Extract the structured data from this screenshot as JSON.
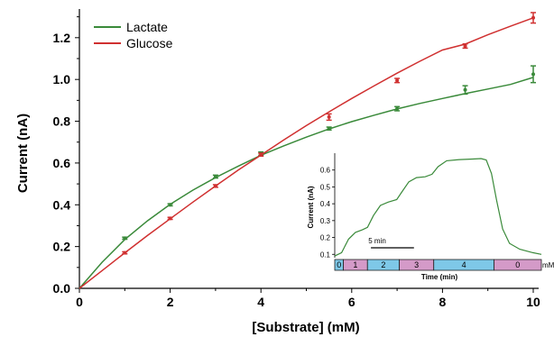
{
  "chart_data": [
    {
      "type": "line",
      "title": "",
      "xlabel": "[Substrate] (mM)",
      "ylabel": "Current (nA)",
      "xlim": [
        0,
        10
      ],
      "ylim": [
        0,
        1.32
      ],
      "x_ticks": [
        "0",
        "2",
        "4",
        "6",
        "8",
        "10"
      ],
      "y_ticks": [
        "0.0",
        "0.2",
        "0.4",
        "0.6",
        "0.8",
        "1.0",
        "1.2"
      ],
      "legend_position": "top-left",
      "error_bars": true,
      "series": [
        {
          "name": "Lactate",
          "color": "#3a8a3a",
          "points": [
            {
              "x": 1,
              "y": 0.24,
              "err": 0.005
            },
            {
              "x": 2,
              "y": 0.4,
              "err": 0.005
            },
            {
              "x": 3,
              "y": 0.535,
              "err": 0.007
            },
            {
              "x": 4,
              "y": 0.645,
              "err": 0.008
            },
            {
              "x": 5.5,
              "y": 0.765,
              "err": 0.007
            },
            {
              "x": 7,
              "y": 0.86,
              "err": 0.01
            },
            {
              "x": 8.5,
              "y": 0.95,
              "err": 0.02
            },
            {
              "x": 10,
              "y": 1.025,
              "err": 0.04
            }
          ],
          "fit": [
            [
              0,
              0
            ],
            [
              0.5,
              0.125
            ],
            [
              1,
              0.234
            ],
            [
              1.5,
              0.323
            ],
            [
              2,
              0.402
            ],
            [
              2.5,
              0.47
            ],
            [
              3,
              0.53
            ],
            [
              3.5,
              0.585
            ],
            [
              4,
              0.637
            ],
            [
              4.5,
              0.682
            ],
            [
              5,
              0.724
            ],
            [
              5.5,
              0.763
            ],
            [
              6,
              0.798
            ],
            [
              6.5,
              0.829
            ],
            [
              7,
              0.859
            ],
            [
              7.5,
              0.885
            ],
            [
              8,
              0.909
            ],
            [
              8.5,
              0.932
            ],
            [
              9,
              0.954
            ],
            [
              9.5,
              0.976
            ],
            [
              10,
              1.01
            ]
          ]
        },
        {
          "name": "Glucose",
          "color": "#d03030",
          "points": [
            {
              "x": 1,
              "y": 0.17,
              "err": 0.005
            },
            {
              "x": 2,
              "y": 0.335,
              "err": 0.005
            },
            {
              "x": 3,
              "y": 0.49,
              "err": 0.006
            },
            {
              "x": 4,
              "y": 0.64,
              "err": 0.007
            },
            {
              "x": 5.5,
              "y": 0.82,
              "err": 0.015
            },
            {
              "x": 7,
              "y": 0.995,
              "err": 0.01
            },
            {
              "x": 8.5,
              "y": 1.16,
              "err": 0.01
            },
            {
              "x": 10,
              "y": 1.295,
              "err": 0.025
            }
          ],
          "fit": [
            [
              0,
              0
            ],
            [
              0.5,
              0.085
            ],
            [
              1,
              0.17
            ],
            [
              1.5,
              0.253
            ],
            [
              2,
              0.333
            ],
            [
              2.5,
              0.413
            ],
            [
              3,
              0.49
            ],
            [
              3.5,
              0.566
            ],
            [
              4,
              0.638
            ],
            [
              4.5,
              0.71
            ],
            [
              5,
              0.779
            ],
            [
              5.5,
              0.845
            ],
            [
              6,
              0.909
            ],
            [
              6.5,
              0.97
            ],
            [
              7,
              1.03
            ],
            [
              7.5,
              1.087
            ],
            [
              8,
              1.141
            ],
            [
              8.5,
              1.169
            ],
            [
              9,
              1.214
            ],
            [
              9.5,
              1.255
            ],
            [
              10,
              1.295
            ]
          ]
        }
      ]
    },
    {
      "type": "line",
      "title": "",
      "xlabel": "Time (min)",
      "ylabel": "Current (nA)",
      "ylim": [
        0.08,
        0.7
      ],
      "xlim": [
        0,
        24
      ],
      "y_ticks": [
        "0.1",
        "0.2",
        "0.3",
        "0.4",
        "0.5",
        "0.6"
      ],
      "scale_bar_label": "5 min",
      "scale_bar_minutes": 5,
      "concentration_unit_label": "mM",
      "segments": [
        {
          "label": "0",
          "start": 0,
          "end": 1,
          "color": "#7ec8e8"
        },
        {
          "label": "1",
          "start": 1,
          "end": 3.8,
          "color": "#d49ac8"
        },
        {
          "label": "2",
          "start": 3.8,
          "end": 7.5,
          "color": "#7ec8e8"
        },
        {
          "label": "3",
          "start": 7.5,
          "end": 11.5,
          "color": "#d49ac8"
        },
        {
          "label": "4",
          "start": 11.5,
          "end": 18.5,
          "color": "#7ec8e8"
        },
        {
          "label": "0",
          "start": 18.5,
          "end": 24,
          "color": "#d49ac8"
        }
      ],
      "series": [
        {
          "name": "",
          "color": "#3a8a3a",
          "points": [
            [
              0,
              0.09
            ],
            [
              0.8,
              0.11
            ],
            [
              1.6,
              0.19
            ],
            [
              2.4,
              0.23
            ],
            [
              3.2,
              0.245
            ],
            [
              3.8,
              0.26
            ],
            [
              4.5,
              0.33
            ],
            [
              5.3,
              0.39
            ],
            [
              6.2,
              0.41
            ],
            [
              7.2,
              0.425
            ],
            [
              7.8,
              0.47
            ],
            [
              8.6,
              0.53
            ],
            [
              9.5,
              0.555
            ],
            [
              10.5,
              0.56
            ],
            [
              11.3,
              0.575
            ],
            [
              12,
              0.62
            ],
            [
              13,
              0.655
            ],
            [
              14.5,
              0.662
            ],
            [
              16,
              0.665
            ],
            [
              17,
              0.668
            ],
            [
              17.6,
              0.66
            ],
            [
              18.2,
              0.58
            ],
            [
              18.8,
              0.42
            ],
            [
              19.5,
              0.25
            ],
            [
              20.3,
              0.165
            ],
            [
              21.5,
              0.13
            ],
            [
              23,
              0.11
            ],
            [
              24,
              0.1
            ]
          ]
        }
      ]
    }
  ],
  "colors": {
    "axis": "#000000",
    "inset_border": "#555555"
  }
}
